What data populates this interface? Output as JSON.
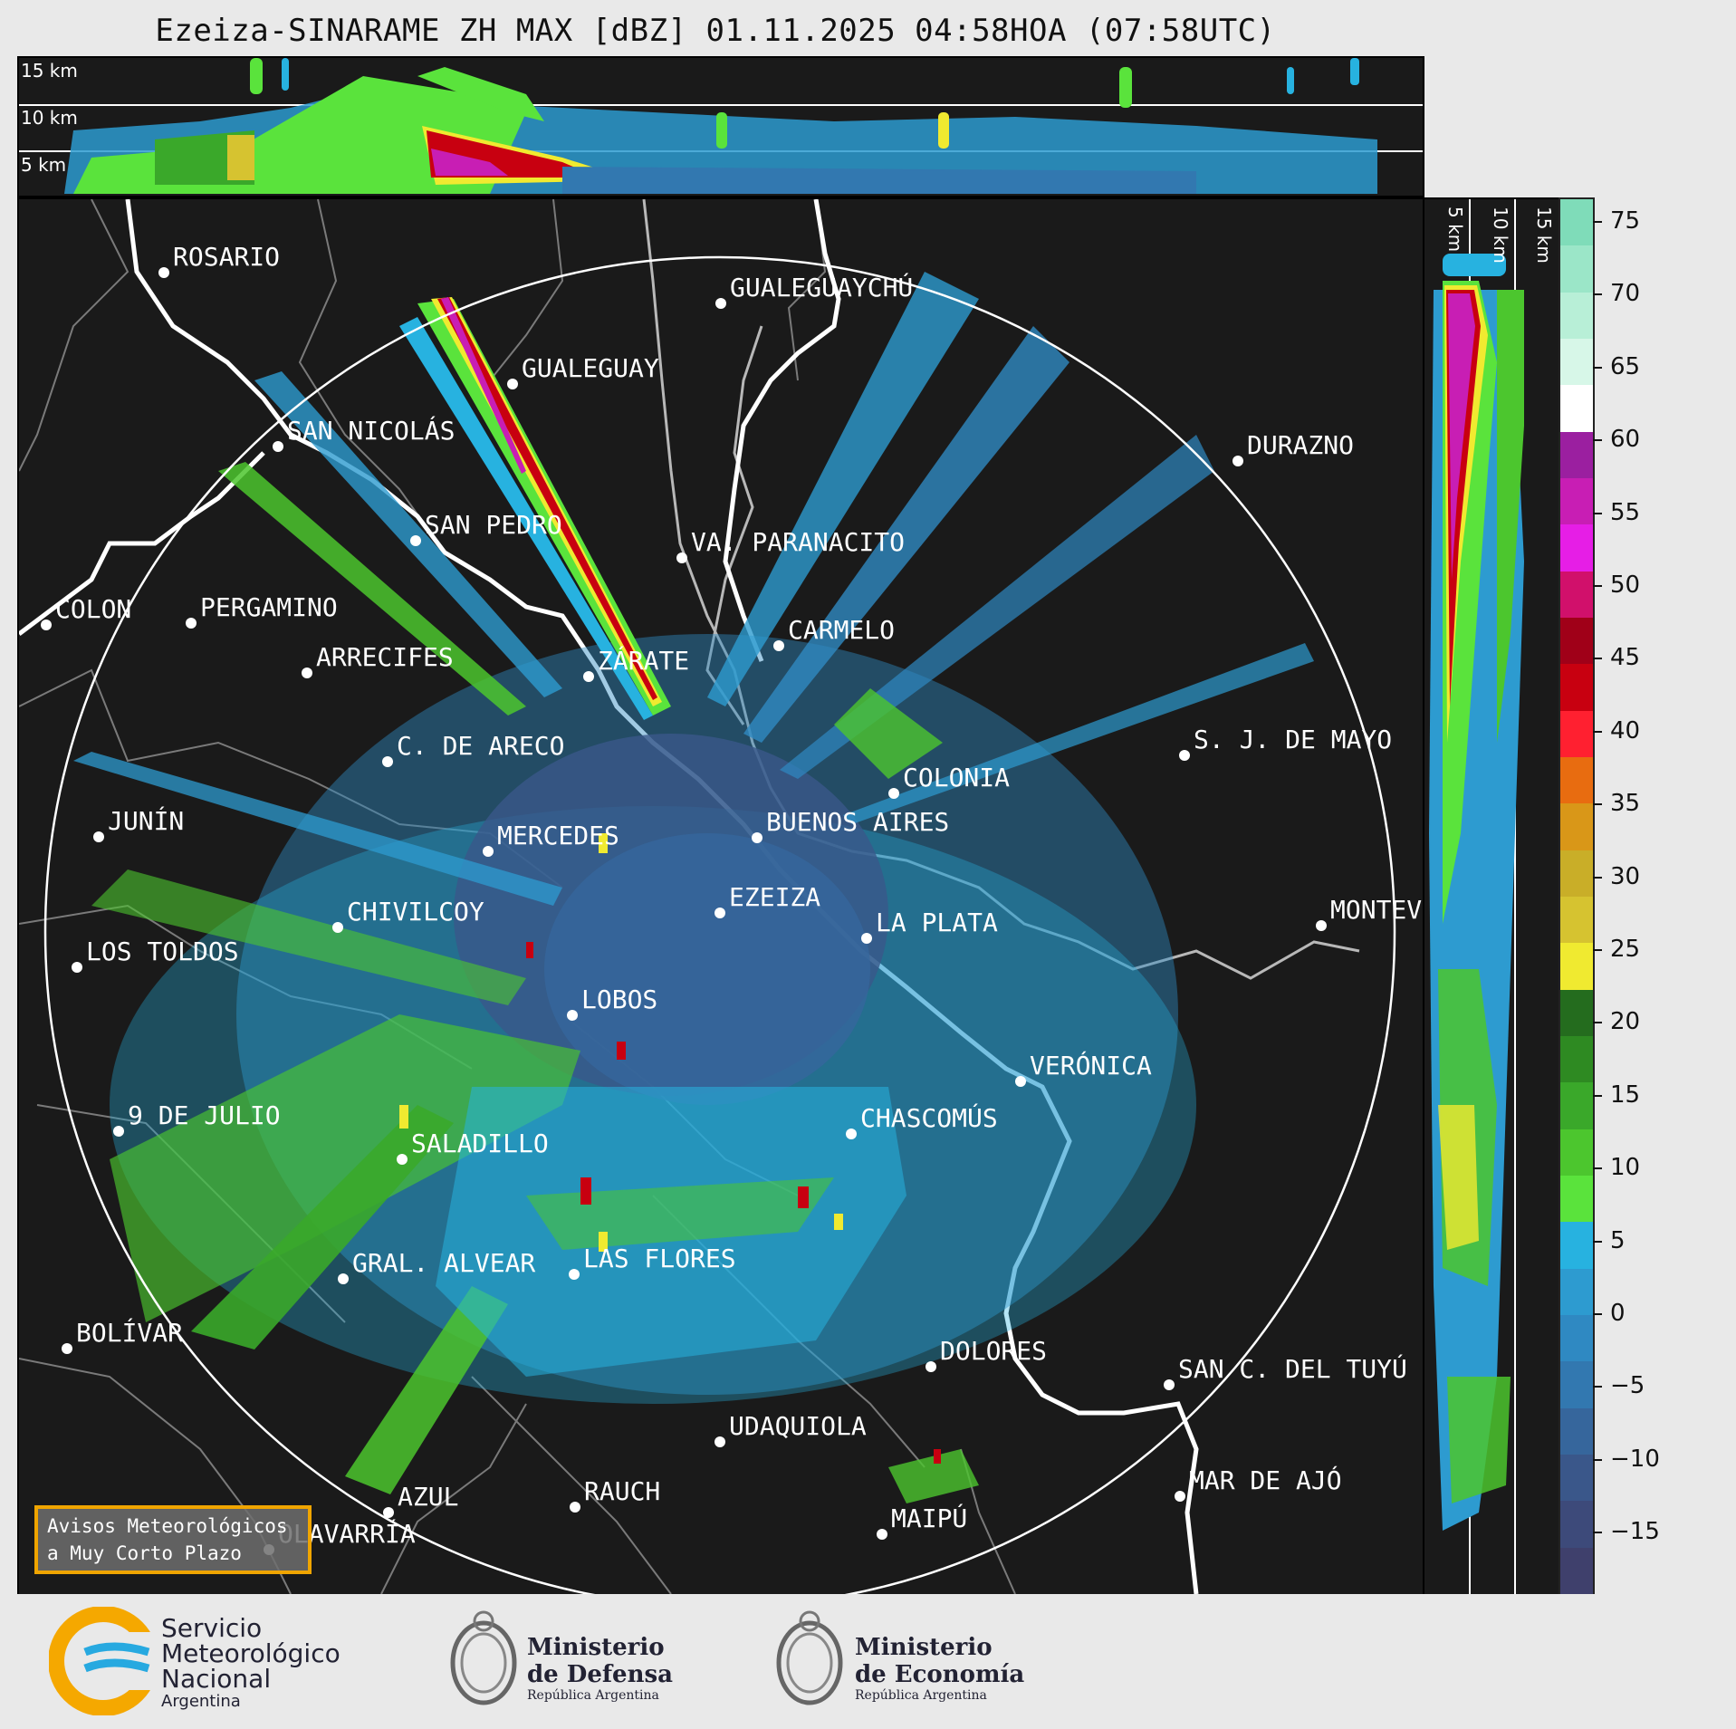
{
  "title": "Ezeiza-SINARAME ZH MAX [dBZ] 01.11.2025 04:58HOA (07:58UTC)",
  "height_labels": [
    "15 km",
    "10 km",
    "5 km"
  ],
  "colorbar": {
    "ticks": [
      "75",
      "70",
      "65",
      "60",
      "55",
      "50",
      "45",
      "40",
      "35",
      "30",
      "25",
      "20",
      "15",
      "10",
      "5",
      "0",
      "−5",
      "−10",
      "−15"
    ],
    "colors_top_to_bottom": [
      "#7fdcb9",
      "#9be6c8",
      "#b8efd7",
      "#d7f7e8",
      "#ffffff",
      "#9b1fa0",
      "#c81eb4",
      "#e61ee6",
      "#d1106b",
      "#a00018",
      "#c80010",
      "#ff2030",
      "#e86c10",
      "#d99718",
      "#c9ae28",
      "#d6c330",
      "#f0ea30",
      "#246c1e",
      "#2e8a22",
      "#3aa82a",
      "#4cc62e",
      "#5ae33c",
      "#27b2e0",
      "#2d9bd0",
      "#2f89c2",
      "#3278b0",
      "#36669c",
      "#3a578a",
      "#3d4a7a",
      "#3f406c"
    ]
  },
  "cities": [
    {
      "name": "ROSARIO"
    },
    {
      "name": "GUALEGUAYCHÚ"
    },
    {
      "name": "GUALEGUAY"
    },
    {
      "name": "SAN NICOLÁS"
    },
    {
      "name": "DURAZNO"
    },
    {
      "name": "SAN PEDRO"
    },
    {
      "name": "VA. PARANACITO"
    },
    {
      "name": "COLON"
    },
    {
      "name": "PERGAMINO"
    },
    {
      "name": "CARMELO"
    },
    {
      "name": "ARRECIFES"
    },
    {
      "name": "ZÁRATE"
    },
    {
      "name": "C. DE ARECO"
    },
    {
      "name": "S. J. DE MAYO"
    },
    {
      "name": "COLONIA"
    },
    {
      "name": "JUNÍN"
    },
    {
      "name": "BUENOS AIRES"
    },
    {
      "name": "MERCEDES"
    },
    {
      "name": "MONTEVIDEO"
    },
    {
      "name": "EZEIZA"
    },
    {
      "name": "CHIVILCOY"
    },
    {
      "name": "LA PLATA"
    },
    {
      "name": "LOS TOLDOS"
    },
    {
      "name": "LOBOS"
    },
    {
      "name": "VERÓNICA"
    },
    {
      "name": "9 DE JULIO"
    },
    {
      "name": "CHASCOMÚS"
    },
    {
      "name": "SALADILLO"
    },
    {
      "name": "GRAL. ALVEAR"
    },
    {
      "name": "LAS FLORES"
    },
    {
      "name": "BOLÍVAR"
    },
    {
      "name": "DOLORES"
    },
    {
      "name": "SAN C. DEL TUYÚ"
    },
    {
      "name": "UDAQUIOLA"
    },
    {
      "name": "MAR DE AJÓ"
    },
    {
      "name": "AZUL"
    },
    {
      "name": "RAUCH"
    },
    {
      "name": "OLAVARRÍA"
    },
    {
      "name": "MAIPÚ"
    }
  ],
  "warning_box": {
    "line1": "Avisos Meteorológicos",
    "line2": "a Muy Corto Plazo"
  },
  "logos": {
    "smn": {
      "line1": "Servicio",
      "line2": "Meteorológico",
      "line3": "Nacional",
      "line4": "Argentina"
    },
    "defensa": {
      "line1": "Ministerio",
      "line2": "de Defensa",
      "line3": "República Argentina"
    },
    "economia": {
      "line1": "Ministerio",
      "line2": "de Economía",
      "line3": "República Argentina"
    }
  }
}
